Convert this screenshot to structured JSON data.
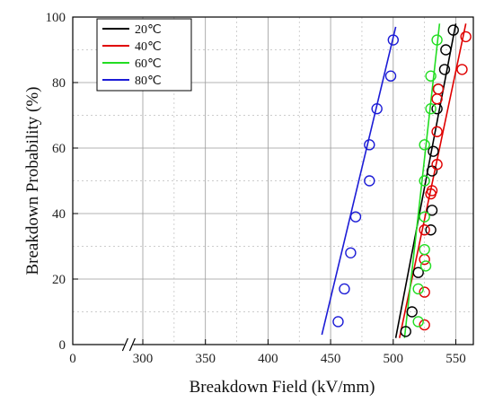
{
  "chart_data": {
    "type": "scatter",
    "xlabel": "Breakdown Field (kV/mm)",
    "ylabel": "Breakdown Probability (%)",
    "xlim": [
      0,
      560
    ],
    "ylim": [
      0,
      100
    ],
    "x_axis_break": true,
    "x_ticks": [
      0,
      300,
      350,
      400,
      450,
      500,
      550
    ],
    "y_ticks": [
      0,
      20,
      40,
      60,
      80,
      100
    ],
    "grid": true,
    "legend_position": "top-left",
    "series": [
      {
        "name": "20℃",
        "color": "#000000",
        "points": [
          [
            510,
            4
          ],
          [
            515,
            10
          ],
          [
            520,
            22
          ],
          [
            530,
            35
          ],
          [
            531,
            41
          ],
          [
            531,
            53
          ],
          [
            532,
            59
          ],
          [
            535,
            72
          ],
          [
            536,
            78
          ],
          [
            541,
            84
          ],
          [
            542,
            90
          ],
          [
            548,
            96
          ]
        ],
        "fit_line": [
          [
            502,
            2
          ],
          [
            550,
            98
          ]
        ]
      },
      {
        "name": "40℃",
        "color": "#e00000",
        "points": [
          [
            525,
            6
          ],
          [
            525,
            16
          ],
          [
            525,
            26
          ],
          [
            525,
            35
          ],
          [
            530,
            46
          ],
          [
            531,
            47
          ],
          [
            535,
            55
          ],
          [
            535,
            65
          ],
          [
            535,
            75
          ],
          [
            536,
            78
          ],
          [
            555,
            84
          ],
          [
            558,
            94
          ]
        ],
        "fit_line": [
          [
            505,
            2
          ],
          [
            558,
            98
          ]
        ]
      },
      {
        "name": "60℃",
        "color": "#22dd22",
        "points": [
          [
            520,
            7
          ],
          [
            520,
            17
          ],
          [
            526,
            24
          ],
          [
            525,
            29
          ],
          [
            525,
            39
          ],
          [
            525,
            50
          ],
          [
            525,
            61
          ],
          [
            530,
            72
          ],
          [
            530,
            82
          ],
          [
            535,
            93
          ]
        ],
        "fit_line": [
          [
            509,
            2
          ],
          [
            537,
            98
          ]
        ]
      },
      {
        "name": "80℃",
        "color": "#1c1cd6",
        "points": [
          [
            456,
            7
          ],
          [
            461,
            17
          ],
          [
            466,
            28
          ],
          [
            470,
            39
          ],
          [
            481,
            50
          ],
          [
            481,
            61
          ],
          [
            487,
            72
          ],
          [
            498,
            82
          ],
          [
            500,
            93
          ]
        ],
        "fit_line": [
          [
            443,
            3
          ],
          [
            502,
            97
          ]
        ]
      }
    ]
  }
}
